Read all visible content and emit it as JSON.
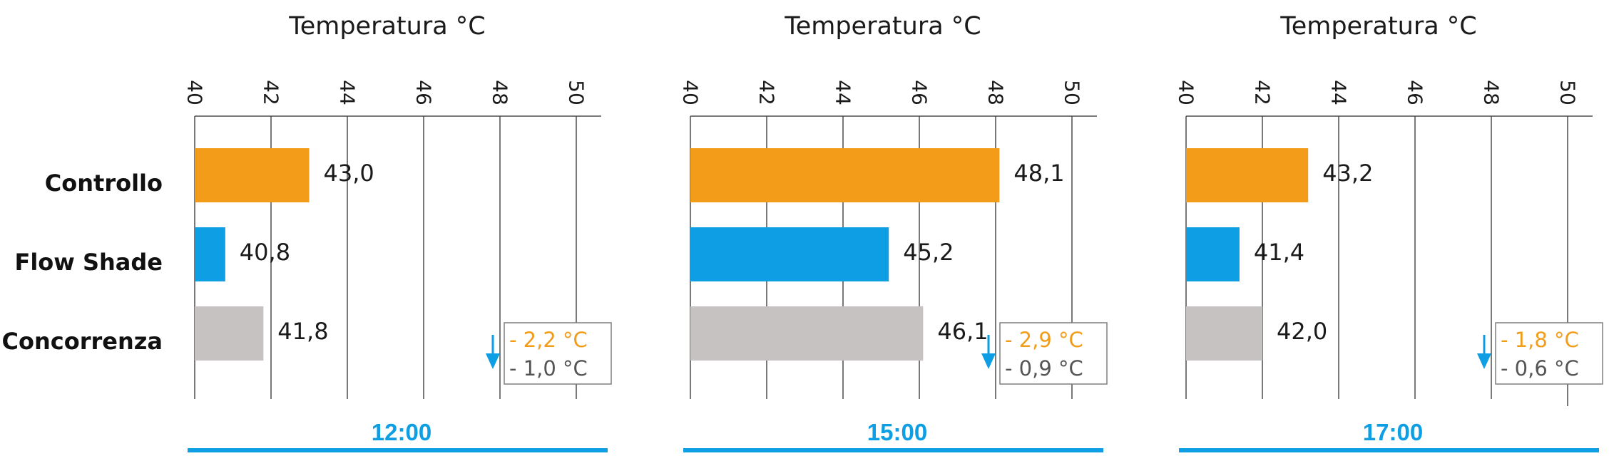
{
  "colors": {
    "controllo": "#f29c1a",
    "flow_shade": "#0e9ee3",
    "concorrenza": "#c7c2c2",
    "accent": "#0e9ee3",
    "diff_orange": "#f29c1a",
    "diff_gray": "#555555",
    "grid": "#4d4d4d"
  },
  "categories": [
    "Controllo",
    "Flow Shade",
    "Concorrenza"
  ],
  "chart_data": [
    {
      "type": "bar",
      "orientation": "horizontal",
      "title": "Temperatura °C",
      "time_label": "12:00",
      "xlim": [
        40,
        51
      ],
      "ticks": [
        40,
        42,
        44,
        46,
        48,
        50
      ],
      "tick_labels": [
        "40",
        "42",
        "44",
        "46",
        "48",
        "50"
      ],
      "categories": [
        "Controllo",
        "Flow Shade",
        "Concorrenza"
      ],
      "values": [
        43.0,
        40.8,
        41.8
      ],
      "value_labels": [
        "43,0",
        "40,8",
        "41,8"
      ],
      "differences": [
        "- 2,2 °C",
        "- 1,0 °C"
      ],
      "arrow_x": 48,
      "grid": true
    },
    {
      "type": "bar",
      "orientation": "horizontal",
      "title": "Temperatura °C",
      "time_label": "15:00",
      "xlim": [
        40,
        51
      ],
      "ticks": [
        40,
        42,
        44,
        46,
        48,
        50
      ],
      "tick_labels": [
        "40",
        "42",
        "44",
        "46",
        "48",
        "50"
      ],
      "categories": [
        "Controllo",
        "Flow Shade",
        "Concorrenza"
      ],
      "values": [
        48.1,
        45.2,
        46.1
      ],
      "value_labels": [
        "48,1",
        "45,2",
        "46,1"
      ],
      "differences": [
        "- 2,9 °C",
        "- 0,9 °C"
      ],
      "arrow_x": 48,
      "grid": true
    },
    {
      "type": "bar",
      "orientation": "horizontal",
      "title": "Temperatura °C",
      "time_label": "17:00",
      "xlim": [
        40,
        51
      ],
      "ticks": [
        40,
        42,
        44,
        46,
        48,
        50
      ],
      "tick_labels": [
        "40",
        "42",
        "44",
        "46",
        "48",
        "50"
      ],
      "categories": [
        "Controllo",
        "Flow Shade",
        "Concorrenza"
      ],
      "values": [
        43.2,
        41.4,
        42.0
      ],
      "value_labels": [
        "43,2",
        "41,4",
        "42,0"
      ],
      "differences": [
        "- 1,8 °C",
        "- 0,6 °C"
      ],
      "arrow_x": 48,
      "grid": true
    }
  ]
}
